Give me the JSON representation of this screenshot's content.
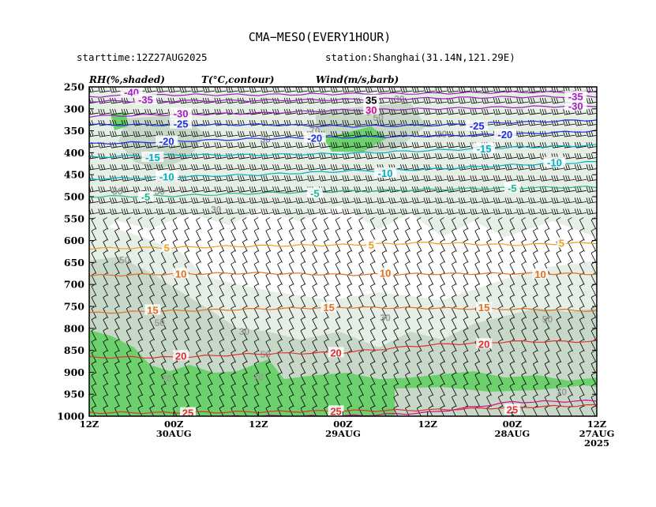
{
  "header": {
    "title": "CMA−MESO(EVERY1HOUR)",
    "starttime": "starttime:12Z27AUG2025",
    "station": "station:Shanghai(31.14N,121.29E)"
  },
  "legend": {
    "rh": "RH(%,shaded)",
    "temp": "T(°C,contour)",
    "wind": "Wind(m/s,barb)"
  },
  "chart_data": {
    "type": "heatmap",
    "y_axis": {
      "range": [
        1000,
        250
      ],
      "ticks": [
        "250",
        "300",
        "350",
        "400",
        "450",
        "500",
        "550",
        "600",
        "650",
        "700",
        "750",
        "800",
        "850",
        "900",
        "950",
        "1000"
      ]
    },
    "x_axis": {
      "direction": "time decreasing to the right",
      "range_hours": [
        -72,
        0
      ],
      "ticks": [
        {
          "hour": -72,
          "line1": "12Z",
          "line2": "",
          "line3": ""
        },
        {
          "hour": -60,
          "line1": "00Z",
          "line2": "30AUG",
          "line3": ""
        },
        {
          "hour": -48,
          "line1": "12Z",
          "line2": "",
          "line3": ""
        },
        {
          "hour": -36,
          "line1": "00Z",
          "line2": "29AUG",
          "line3": ""
        },
        {
          "hour": -24,
          "line1": "12Z",
          "line2": "",
          "line3": ""
        },
        {
          "hour": -12,
          "line1": "00Z",
          "line2": "28AUG",
          "line3": ""
        },
        {
          "hour": 0,
          "line1": "12Z",
          "line2": "27AUG",
          "line3": "2025"
        }
      ]
    },
    "temperature_contours": [
      {
        "value": "-40",
        "color": "#a020c0",
        "levels": [
          272,
          268,
          268,
          266,
          265,
          262,
          262
        ]
      },
      {
        "value": "-35",
        "color": "#a020c0",
        "levels": [
          283,
          282,
          281,
          279,
          276,
          273,
          272
        ]
      },
      {
        "value": "-30",
        "color": "#a020c0",
        "levels": [
          317,
          313,
          310,
          303,
          300,
          296,
          293
        ]
      },
      {
        "value": "-25",
        "color": "#2030e0",
        "levels": [
          336,
          337,
          336,
          340,
          338,
          331,
          325
        ]
      },
      {
        "value": "-20",
        "color": "#2030e0",
        "levels": [
          380,
          374,
          368,
          365,
          362,
          358,
          350
        ]
      },
      {
        "value": "-15",
        "color": "#00b0c8",
        "levels": [
          410,
          405,
          405,
          402,
          395,
          388,
          383
        ]
      },
      {
        "value": "-10",
        "color": "#00b0c8",
        "levels": [
          460,
          455,
          450,
          442,
          438,
          428,
          421
        ]
      },
      {
        "value": "-5",
        "color": "#20b890",
        "levels": [
          500,
          498,
          492,
          488,
          484,
          480,
          478
        ]
      },
      {
        "value": "5",
        "color": "#e8a020",
        "levels": [
          618,
          616,
          612,
          610,
          605,
          610,
          605
        ]
      },
      {
        "value": "10",
        "color": "#e07020",
        "levels": [
          680,
          676,
          674,
          678,
          676,
          675,
          676
        ]
      },
      {
        "value": "15",
        "color": "#e07020",
        "levels": [
          765,
          760,
          756,
          752,
          754,
          756,
          760
        ]
      },
      {
        "value": "20",
        "color": "#e03030",
        "levels": [
          866,
          866,
          858,
          855,
          838,
          830,
          830
        ]
      },
      {
        "value": "25",
        "color": "#e03030",
        "levels": [
          992,
          992,
          990,
          988,
          986,
          980,
          975
        ]
      },
      {
        "value": "30",
        "color": "#d0108c",
        "levels": [
          1002,
          1002,
          1000,
          1000,
          992,
          968,
          965
        ]
      }
    ],
    "temperature_labels": [
      {
        "text": "-40",
        "hour": -66,
        "p": 262
      },
      {
        "text": "-35",
        "hour": -64,
        "p": 279
      },
      {
        "text": "-30",
        "hour": -59,
        "p": 310
      },
      {
        "text": "-25",
        "hour": -59,
        "p": 334
      },
      {
        "text": "-20",
        "hour": -61,
        "p": 373
      },
      {
        "text": "-15",
        "hour": -63,
        "p": 410
      },
      {
        "text": "-10",
        "hour": -61,
        "p": 454
      },
      {
        "text": "-5",
        "hour": -64,
        "p": 500
      },
      {
        "text": "5",
        "hour": -61,
        "p": 616
      },
      {
        "text": "10",
        "hour": -59,
        "p": 675
      },
      {
        "text": "15",
        "hour": -63,
        "p": 758
      },
      {
        "text": "20",
        "hour": -59,
        "p": 862
      },
      {
        "text": "25",
        "hour": -58,
        "p": 992
      },
      {
        "text": "-20",
        "hour": -40,
        "p": 366
      },
      {
        "text": "-10",
        "hour": -30,
        "p": 446
      },
      {
        "text": "-5",
        "hour": -40,
        "p": 492
      },
      {
        "text": "5",
        "hour": -32,
        "p": 610
      },
      {
        "text": "10",
        "hour": -30,
        "p": 674
      },
      {
        "text": "15",
        "hour": -38,
        "p": 752
      },
      {
        "text": "20",
        "hour": -37,
        "p": 855
      },
      {
        "text": "25",
        "hour": -37,
        "p": 988
      },
      {
        "text": "35",
        "hour": -32,
        "p": 280
      },
      {
        "text": "30",
        "hour": -32,
        "p": 302
      },
      {
        "text": "-25",
        "hour": -17,
        "p": 338
      },
      {
        "text": "-20",
        "hour": -13,
        "p": 358
      },
      {
        "text": "-15",
        "hour": -16,
        "p": 390
      },
      {
        "text": "-5",
        "hour": -12,
        "p": 480
      },
      {
        "text": "15",
        "hour": -16,
        "p": 752
      },
      {
        "text": "20",
        "hour": -16,
        "p": 835
      },
      {
        "text": "25",
        "hour": -12,
        "p": 985
      },
      {
        "text": "-35",
        "hour": -3,
        "p": 272
      },
      {
        "text": "-30",
        "hour": -3,
        "p": 293
      },
      {
        "text": "-10",
        "hour": -6,
        "p": 422
      },
      {
        "text": "5",
        "hour": -5,
        "p": 605
      },
      {
        "text": "10",
        "hour": -8,
        "p": 676
      }
    ],
    "rh_contour_labels": [
      {
        "text": "50",
        "hour": -68,
        "p": 488
      },
      {
        "text": "50",
        "hour": -62,
        "p": 488
      },
      {
        "text": "30",
        "hour": -54,
        "p": 530
      },
      {
        "text": "50",
        "hour": -67,
        "p": 645
      },
      {
        "text": "50",
        "hour": -62,
        "p": 788
      },
      {
        "text": "30",
        "hour": -50,
        "p": 808
      },
      {
        "text": "70",
        "hour": -61,
        "p": 915
      },
      {
        "text": "50",
        "hour": -47,
        "p": 860
      },
      {
        "text": "70",
        "hour": -48,
        "p": 912
      },
      {
        "text": "30",
        "hour": -47,
        "p": 370
      },
      {
        "text": "70",
        "hour": -40,
        "p": 350
      },
      {
        "text": "30",
        "hour": -28,
        "p": 278
      },
      {
        "text": "50",
        "hour": -31,
        "p": 320
      },
      {
        "text": "30",
        "hour": -30,
        "p": 776
      },
      {
        "text": "50",
        "hour": -7,
        "p": 780
      },
      {
        "text": "70",
        "hour": -5,
        "p": 945
      },
      {
        "text": "30",
        "hour": -22,
        "p": 358
      }
    ],
    "rh_shading": [
      {
        "level": "70-90",
        "color": "#c8d8c8"
      },
      {
        "level": "90-100",
        "color": "#6cd06c"
      }
    ]
  }
}
